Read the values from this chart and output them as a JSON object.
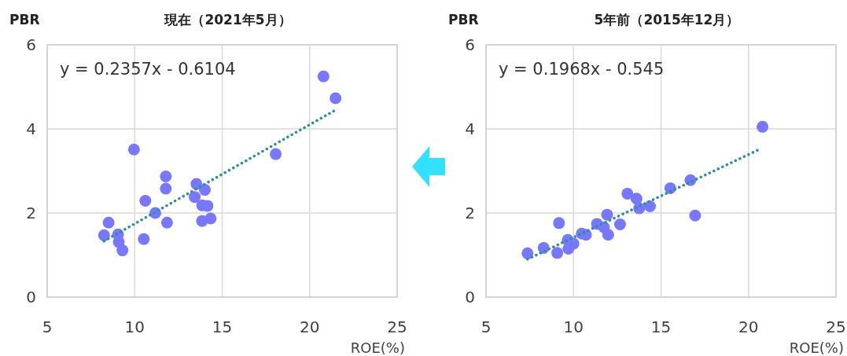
{
  "chart_data": [
    {
      "type": "scatter",
      "title": "現在（2021年5月）",
      "xlabel": "ROE(%)",
      "ylabel": "PBR",
      "xlim": [
        5,
        25
      ],
      "xticks": [
        5,
        10,
        15,
        20,
        25
      ],
      "ylim": [
        0,
        6
      ],
      "yticks": [
        0,
        2,
        4,
        6
      ],
      "grid": true,
      "marker": "circle",
      "annotations": [
        "y = 0.2357x - 0.6104"
      ],
      "series": [
        {
          "color": "#7777ff",
          "x": [
            20.79,
            21.48,
            9.96,
            18.06,
            11.78,
            11.78,
            13.53,
            14.01,
            10.61,
            13.43,
            13.86,
            14.16,
            11.18,
            11.85,
            8.51,
            13.85,
            14.34,
            8.25,
            9.05,
            9.09,
            10.52,
            9.3
          ],
          "values": [
            5.25,
            4.73,
            3.51,
            3.4,
            2.87,
            2.58,
            2.69,
            2.55,
            2.29,
            2.38,
            2.18,
            2.17,
            2.0,
            1.77,
            1.77,
            1.81,
            1.87,
            1.47,
            1.49,
            1.31,
            1.38,
            1.11
          ]
        },
        {
          "type": "line",
          "line_style": "dotted",
          "marker": "none",
          "color": "#2a8f96",
          "x": [
            8.25,
            21.4
          ],
          "values": [
            1.33,
            4.43
          ]
        }
      ]
    },
    {
      "type": "scatter",
      "title": "5年前（2015年12月）",
      "xlabel": "ROE(%)",
      "ylabel": "PBR",
      "xlim": [
        5,
        25
      ],
      "xticks": [
        5,
        10,
        15,
        20,
        25
      ],
      "ylim": [
        0,
        6
      ],
      "yticks": [
        0,
        2,
        4,
        6
      ],
      "grid": true,
      "marker": "circle",
      "annotations": [
        "y = 0.1968x - 0.545"
      ],
      "series": [
        {
          "color": "#7777ff",
          "x": [
            20.8,
            16.68,
            15.53,
            13.08,
            13.6,
            13.75,
            14.37,
            16.95,
            11.92,
            9.17,
            11.34,
            11.74,
            12.66,
            11.98,
            10.47,
            10.71,
            9.67,
            10.0,
            9.71,
            8.29,
            9.07,
            7.37
          ],
          "values": [
            4.05,
            2.78,
            2.59,
            2.46,
            2.34,
            2.11,
            2.16,
            1.94,
            1.96,
            1.76,
            1.74,
            1.66,
            1.73,
            1.48,
            1.51,
            1.48,
            1.36,
            1.27,
            1.15,
            1.17,
            1.05,
            1.04
          ]
        },
        {
          "type": "line",
          "line_style": "dotted",
          "marker": "none",
          "color": "#2a8f96",
          "x": [
            7.37,
            20.71
          ],
          "values": [
            0.9,
            3.53
          ]
        }
      ]
    }
  ]
}
